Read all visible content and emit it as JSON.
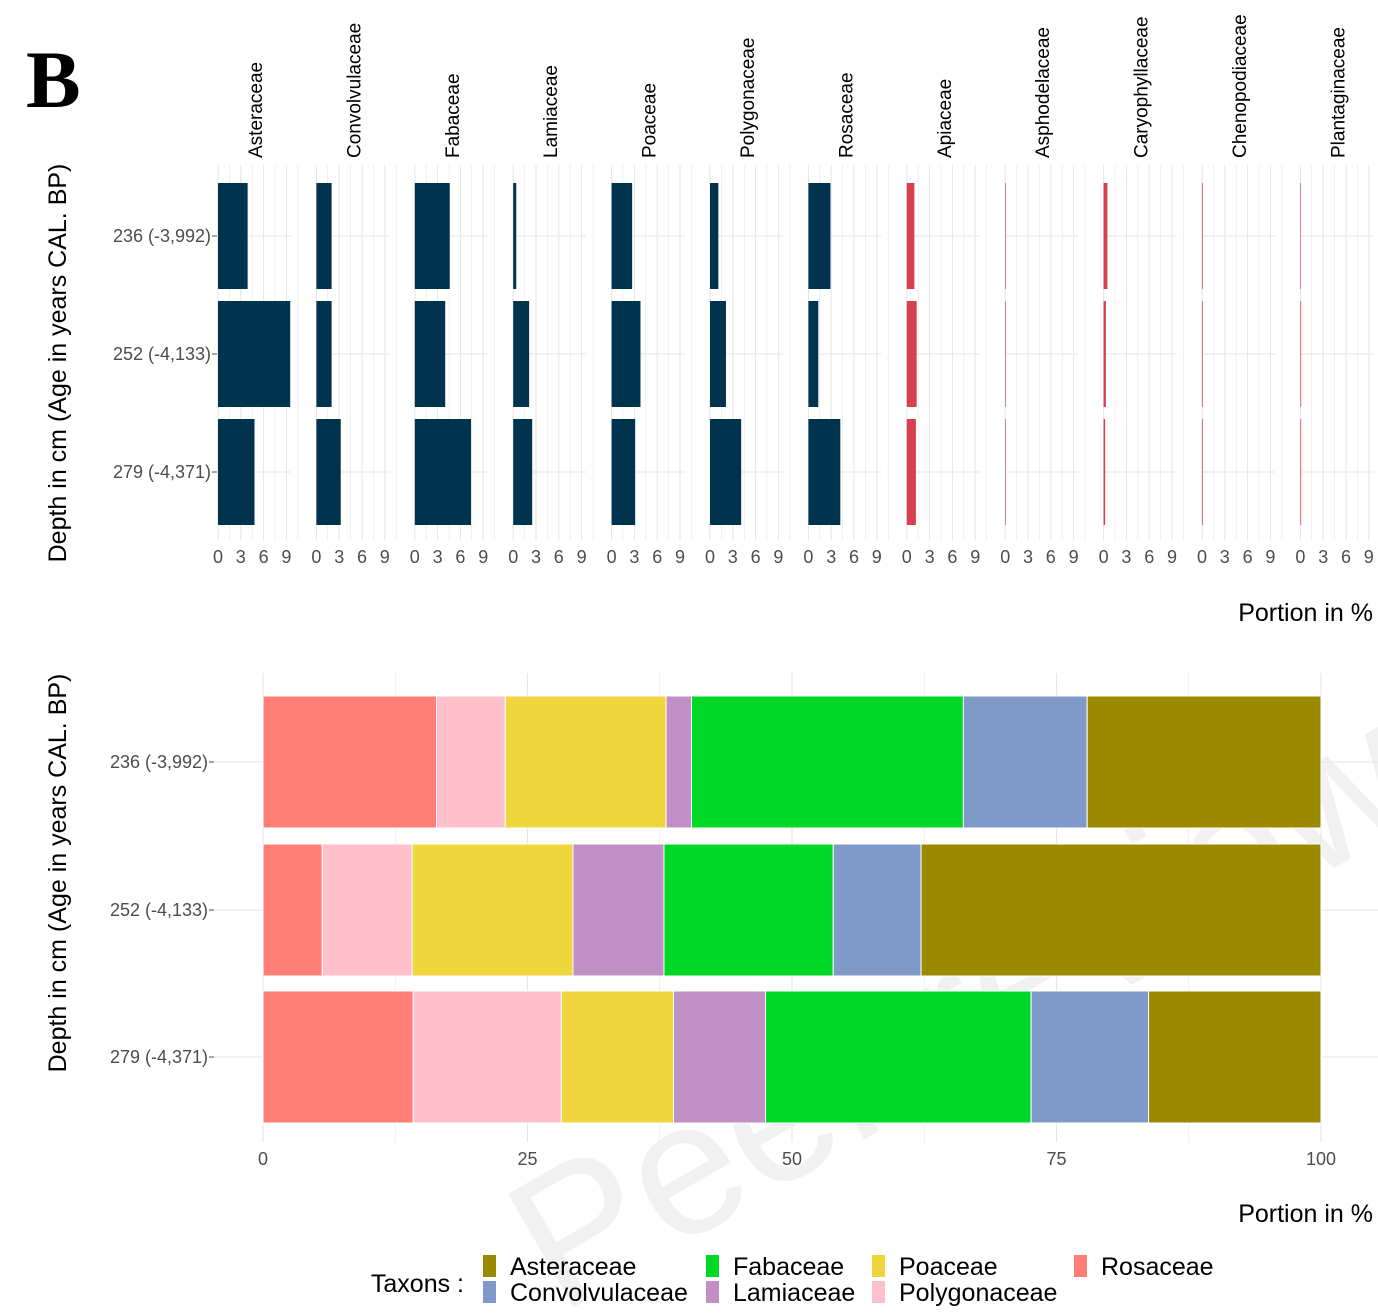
{
  "panel_label": "B",
  "watermark": "Peer review",
  "chart_data": [
    {
      "type": "bar",
      "orientation": "horizontal",
      "faceted": true,
      "xlabel": "Portion in %",
      "ylabel": "Depth in cm (Age in years CAL. BP)",
      "categories": [
        "236 (-3,992)",
        "252 (-4,133)",
        "279 (-4,371)"
      ],
      "x_ticks": [
        0,
        3,
        6,
        9
      ],
      "xlim": [
        0,
        11
      ],
      "grid": true,
      "colors": {
        "main": "#00334d",
        "minor": "#d9404e"
      },
      "facets": [
        {
          "name": "Asteraceae",
          "group": "main",
          "values": [
            3.9,
            9.5,
            4.8
          ]
        },
        {
          "name": "Convolvulaceae",
          "group": "main",
          "values": [
            2.0,
            2.0,
            3.2
          ]
        },
        {
          "name": "Fabaceae",
          "group": "main",
          "values": [
            4.6,
            4.0,
            7.4
          ]
        },
        {
          "name": "Lamiaceae",
          "group": "main",
          "values": [
            0.4,
            2.1,
            2.5
          ]
        },
        {
          "name": "Poaceae",
          "group": "main",
          "values": [
            2.7,
            3.8,
            3.1
          ]
        },
        {
          "name": "Polygonaceae",
          "group": "main",
          "values": [
            1.1,
            2.1,
            4.1
          ]
        },
        {
          "name": "Rosaceae",
          "group": "main",
          "values": [
            2.9,
            1.3,
            4.2
          ]
        },
        {
          "name": "Apiaceae",
          "group": "minor",
          "values": [
            1.0,
            1.3,
            1.2
          ]
        },
        {
          "name": "Asphodelaceae",
          "group": "minor",
          "values": [
            0.05,
            0.05,
            0.05
          ]
        },
        {
          "name": "Caryophyllaceae",
          "group": "minor",
          "values": [
            0.5,
            0.3,
            0.2
          ]
        },
        {
          "name": "Chenopodiaceae",
          "group": "minor",
          "values": [
            0.1,
            0.1,
            0.1
          ]
        },
        {
          "name": "Plantaginaceae",
          "group": "minor",
          "values": [
            0.05,
            0.1,
            0.1
          ]
        }
      ]
    },
    {
      "type": "bar",
      "orientation": "horizontal",
      "stacked": true,
      "xlabel": "Portion in %",
      "ylabel": "Depth in cm (Age in years CAL. BP)",
      "categories": [
        "236 (-3,992)",
        "252 (-4,133)",
        "279 (-4,371)"
      ],
      "x_ticks": [
        0,
        25,
        50,
        75,
        100
      ],
      "xlim": [
        0,
        100
      ],
      "grid": true,
      "legend_title": "Taxons :",
      "legend_position": "bottom",
      "stack_order": [
        "Rosaceae",
        "Polygonaceae",
        "Poaceae",
        "Lamiaceae",
        "Fabaceae",
        "Convolvulaceae",
        "Asteraceae"
      ],
      "series": [
        {
          "name": "Asteraceae",
          "color": "#9b8a00",
          "values": [
            22.1,
            37.8,
            16.3
          ]
        },
        {
          "name": "Convolvulaceae",
          "color": "#7f99c9",
          "values": [
            11.7,
            8.3,
            11.1
          ]
        },
        {
          "name": "Fabaceae",
          "color": "#00d827",
          "values": [
            25.7,
            16.0,
            25.1
          ]
        },
        {
          "name": "Lamiaceae",
          "color": "#bf8fc6",
          "values": [
            2.4,
            8.6,
            8.7
          ]
        },
        {
          "name": "Poaceae",
          "color": "#efd63d",
          "values": [
            15.2,
            15.2,
            10.6
          ]
        },
        {
          "name": "Polygonaceae",
          "color": "#ffc0cb",
          "values": [
            6.5,
            8.5,
            14.0
          ]
        },
        {
          "name": "Rosaceae",
          "color": "#ff7f77",
          "values": [
            16.4,
            5.6,
            14.2
          ]
        }
      ]
    }
  ]
}
